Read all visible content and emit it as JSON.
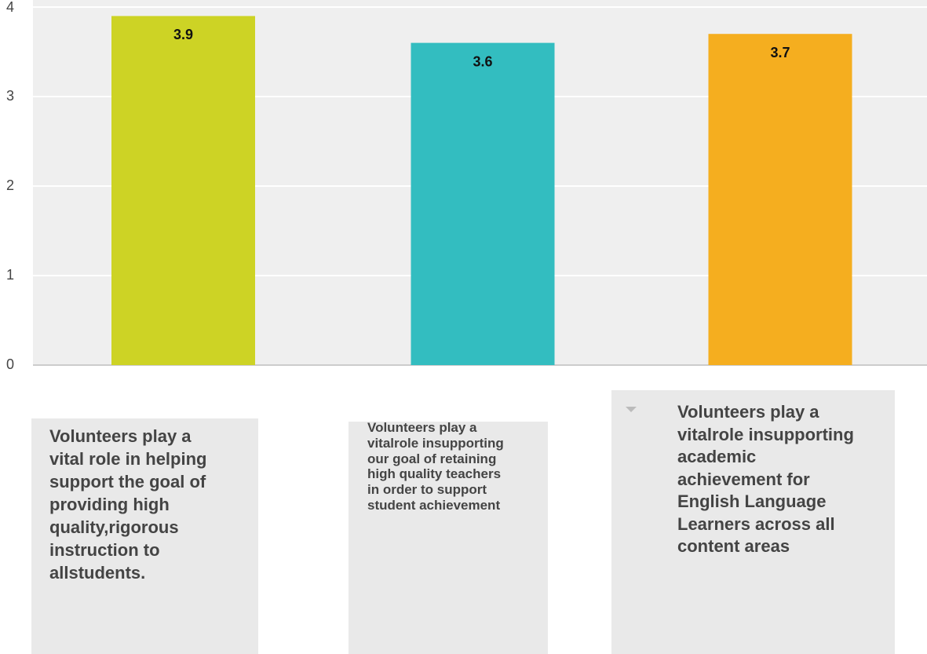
{
  "chart_data": {
    "type": "bar",
    "categories": [
      "Volunteers play a vital role in helping support the goal of providing high quality,rigorous instruction to allstudents.",
      "Volunteers play a vitalrole insupporting our goal of retaining high quality teachers in order to support student achievement",
      "Volunteers play a vitalrole insupporting academic achievement for English Language Learners across all content areas"
    ],
    "values": [
      3.9,
      3.6,
      3.7
    ],
    "colors": [
      "#cdd325",
      "#33bdc0",
      "#f5ae1f"
    ],
    "ylim": [
      0,
      4
    ],
    "yticks": [
      0,
      1,
      2,
      3,
      4
    ],
    "grid": true
  }
}
